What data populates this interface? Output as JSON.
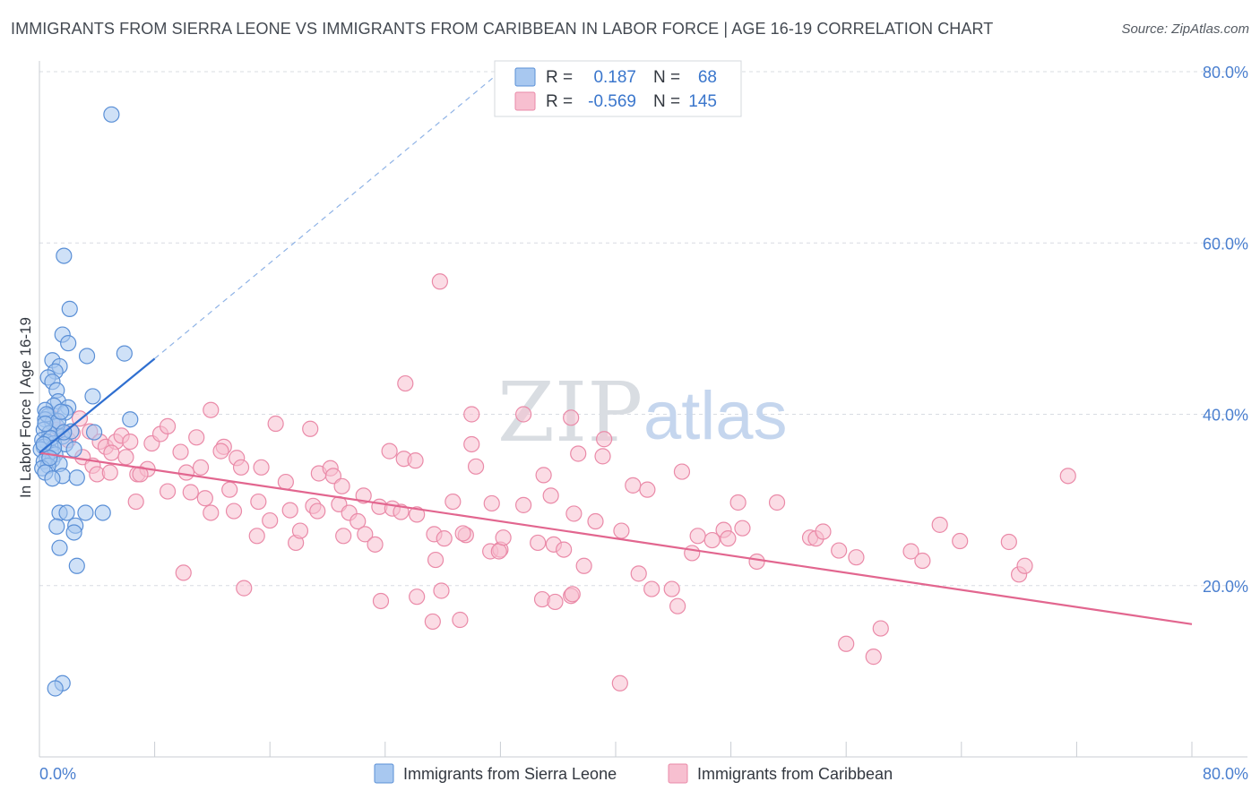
{
  "title": "IMMIGRANTS FROM SIERRA LEONE VS IMMIGRANTS FROM CARIBBEAN IN LABOR FORCE | AGE 16-19 CORRELATION CHART",
  "source": "Source: ZipAtlas.com",
  "watermark": {
    "zip": "ZIP",
    "atlas": "atlas"
  },
  "legend": {
    "rows": [
      {
        "r_label": "R =",
        "r_value": "0.187",
        "n_label": "N =",
        "n_value": "68"
      },
      {
        "r_label": "R =",
        "r_value": "-0.569",
        "n_label": "N =",
        "n_value": "145"
      }
    ]
  },
  "bottom_legend": [
    "Immigrants from Sierra Leone",
    "Immigrants from Caribbean"
  ],
  "colors": {
    "blue_fill": "#a8c8f0",
    "blue_stroke": "#5a8fd6",
    "blue_line": "#2f6fd0",
    "pink_fill": "#f7bfd0",
    "pink_stroke": "#ea8aa8",
    "pink_line": "#e2668f",
    "grid": "#d8dce2",
    "tick_label": "#4a7fcf"
  },
  "chart_data": {
    "type": "scatter",
    "title": "IMMIGRANTS FROM SIERRA LEONE VS IMMIGRANTS FROM CARIBBEAN IN LABOR FORCE | AGE 16-19 CORRELATION CHART",
    "xlabel": "",
    "ylabel": "In Labor Force | Age 16-19",
    "xlim": [
      0,
      80
    ],
    "ylim": [
      0,
      80
    ],
    "x_tick_labels": [
      "0.0%",
      "80.0%"
    ],
    "y_tick_labels": [
      "20.0%",
      "40.0%",
      "60.0%",
      "80.0%"
    ],
    "y_ticks": [
      20,
      40,
      60,
      80
    ],
    "series": [
      {
        "name": "Immigrants from Sierra Leone",
        "r": 0.187,
        "n": 68,
        "trend": {
          "x": [
            0,
            8
          ],
          "y": [
            35.5,
            46.5
          ],
          "dashed_to": [
            32,
            80
          ]
        },
        "points": [
          [
            5.0,
            75.0
          ],
          [
            1.7,
            58.5
          ],
          [
            2.1,
            52.3
          ],
          [
            1.6,
            49.3
          ],
          [
            2.0,
            48.3
          ],
          [
            3.3,
            46.8
          ],
          [
            5.9,
            47.1
          ],
          [
            0.9,
            46.3
          ],
          [
            1.4,
            45.6
          ],
          [
            1.1,
            45.0
          ],
          [
            0.6,
            44.3
          ],
          [
            0.9,
            43.8
          ],
          [
            1.2,
            42.8
          ],
          [
            3.7,
            42.1
          ],
          [
            1.3,
            41.5
          ],
          [
            1.0,
            41.0
          ],
          [
            2.0,
            40.8
          ],
          [
            0.4,
            40.5
          ],
          [
            1.8,
            40.2
          ],
          [
            0.6,
            39.8
          ],
          [
            0.4,
            39.4
          ],
          [
            0.9,
            39.0
          ],
          [
            1.2,
            38.6
          ],
          [
            6.3,
            39.4
          ],
          [
            0.3,
            38.2
          ],
          [
            0.7,
            37.8
          ],
          [
            1.6,
            37.4
          ],
          [
            0.2,
            37.0
          ],
          [
            0.5,
            36.8
          ],
          [
            1.0,
            36.6
          ],
          [
            1.8,
            36.5
          ],
          [
            0.3,
            36.2
          ],
          [
            0.1,
            35.9
          ],
          [
            2.4,
            35.9
          ],
          [
            0.8,
            35.6
          ],
          [
            1.1,
            35.3
          ],
          [
            3.8,
            37.9
          ],
          [
            0.5,
            35.0
          ],
          [
            0.9,
            34.7
          ],
          [
            0.3,
            34.5
          ],
          [
            1.4,
            34.2
          ],
          [
            0.6,
            34.0
          ],
          [
            0.2,
            33.7
          ],
          [
            0.4,
            33.2
          ],
          [
            1.6,
            32.8
          ],
          [
            2.6,
            32.6
          ],
          [
            0.9,
            32.5
          ],
          [
            1.4,
            28.5
          ],
          [
            1.9,
            28.5
          ],
          [
            3.2,
            28.5
          ],
          [
            4.4,
            28.5
          ],
          [
            2.5,
            27.0
          ],
          [
            1.2,
            26.9
          ],
          [
            2.4,
            26.2
          ],
          [
            1.4,
            24.4
          ],
          [
            2.6,
            22.3
          ],
          [
            1.6,
            8.6
          ],
          [
            1.1,
            8.0
          ],
          [
            0.5,
            40.0
          ],
          [
            0.8,
            37.2
          ],
          [
            1.3,
            39.2
          ],
          [
            2.2,
            38.0
          ],
          [
            0.4,
            38.9
          ],
          [
            1.0,
            36.1
          ],
          [
            0.7,
            34.9
          ],
          [
            1.7,
            37.9
          ],
          [
            0.3,
            36.5
          ],
          [
            1.5,
            40.3
          ]
        ]
      },
      {
        "name": "Immigrants from Caribbean",
        "r": -0.569,
        "n": 145,
        "trend": {
          "x": [
            0,
            80
          ],
          "y": [
            35.5,
            15.5
          ]
        },
        "points": [
          [
            1.0,
            39.5
          ],
          [
            1.5,
            38.0
          ],
          [
            2.0,
            37.0
          ],
          [
            2.8,
            39.5
          ],
          [
            1.2,
            38.2
          ],
          [
            2.3,
            37.8
          ],
          [
            3.5,
            38.0
          ],
          [
            4.2,
            36.8
          ],
          [
            3.0,
            35.0
          ],
          [
            4.6,
            36.2
          ],
          [
            5.3,
            36.8
          ],
          [
            5.7,
            37.5
          ],
          [
            6.3,
            36.8
          ],
          [
            5.0,
            35.5
          ],
          [
            6.0,
            35.0
          ],
          [
            3.7,
            34.0
          ],
          [
            4.0,
            33.0
          ],
          [
            4.9,
            33.2
          ],
          [
            6.8,
            33.0
          ],
          [
            7.5,
            33.6
          ],
          [
            7.8,
            36.6
          ],
          [
            8.4,
            37.7
          ],
          [
            8.9,
            38.6
          ],
          [
            9.8,
            35.6
          ],
          [
            10.9,
            37.3
          ],
          [
            10.2,
            33.2
          ],
          [
            11.2,
            33.8
          ],
          [
            12.8,
            36.2
          ],
          [
            12.6,
            35.7
          ],
          [
            13.7,
            34.9
          ],
          [
            14.0,
            33.8
          ],
          [
            11.9,
            40.5
          ],
          [
            7.0,
            33.0
          ],
          [
            6.7,
            29.8
          ],
          [
            8.9,
            31.0
          ],
          [
            10.5,
            30.9
          ],
          [
            11.5,
            30.2
          ],
          [
            11.9,
            28.5
          ],
          [
            13.2,
            31.2
          ],
          [
            13.5,
            28.7
          ],
          [
            15.4,
            33.8
          ],
          [
            15.2,
            29.8
          ],
          [
            16.0,
            27.6
          ],
          [
            15.1,
            25.8
          ],
          [
            17.1,
            32.1
          ],
          [
            16.4,
            38.9
          ],
          [
            17.4,
            28.8
          ],
          [
            17.8,
            25.0
          ],
          [
            18.1,
            26.4
          ],
          [
            19.0,
            29.3
          ],
          [
            19.3,
            28.7
          ],
          [
            18.8,
            38.3
          ],
          [
            19.4,
            33.1
          ],
          [
            20.2,
            33.7
          ],
          [
            20.4,
            32.8
          ],
          [
            21.0,
            31.6
          ],
          [
            20.8,
            29.5
          ],
          [
            21.5,
            28.5
          ],
          [
            22.5,
            30.5
          ],
          [
            22.1,
            27.5
          ],
          [
            22.6,
            26.0
          ],
          [
            23.3,
            24.8
          ],
          [
            23.6,
            29.2
          ],
          [
            21.1,
            25.8
          ],
          [
            24.3,
            35.7
          ],
          [
            24.5,
            29.0
          ],
          [
            25.3,
            34.8
          ],
          [
            26.1,
            34.6
          ],
          [
            25.1,
            28.6
          ],
          [
            26.2,
            28.3
          ],
          [
            27.4,
            26.0
          ],
          [
            28.1,
            25.5
          ],
          [
            27.5,
            23.0
          ],
          [
            25.4,
            43.6
          ],
          [
            30.0,
            36.5
          ],
          [
            30.3,
            33.9
          ],
          [
            28.7,
            29.8
          ],
          [
            29.6,
            25.9
          ],
          [
            29.4,
            26.1
          ],
          [
            31.4,
            29.6
          ],
          [
            31.3,
            24.0
          ],
          [
            32.0,
            24.2
          ],
          [
            31.9,
            24.0
          ],
          [
            32.2,
            25.6
          ],
          [
            30.0,
            40.0
          ],
          [
            33.6,
            40.0
          ],
          [
            33.6,
            29.4
          ],
          [
            34.6,
            25.0
          ],
          [
            35.0,
            32.9
          ],
          [
            35.5,
            30.5
          ],
          [
            35.7,
            24.8
          ],
          [
            36.4,
            24.2
          ],
          [
            37.4,
            35.4
          ],
          [
            37.1,
            28.4
          ],
          [
            37.8,
            22.3
          ],
          [
            38.6,
            27.5
          ],
          [
            40.4,
            26.4
          ],
          [
            41.2,
            31.7
          ],
          [
            41.6,
            21.4
          ],
          [
            42.5,
            19.6
          ],
          [
            43.9,
            19.6
          ],
          [
            44.3,
            17.6
          ],
          [
            45.7,
            25.8
          ],
          [
            45.3,
            23.8
          ],
          [
            47.5,
            26.5
          ],
          [
            47.8,
            25.5
          ],
          [
            48.8,
            26.7
          ],
          [
            48.5,
            29.7
          ],
          [
            49.8,
            22.8
          ],
          [
            51.2,
            29.7
          ],
          [
            53.5,
            25.6
          ],
          [
            53.9,
            25.5
          ],
          [
            54.4,
            26.3
          ],
          [
            55.5,
            24.1
          ],
          [
            56.7,
            23.3
          ],
          [
            56.0,
            13.2
          ],
          [
            57.9,
            11.7
          ],
          [
            58.4,
            15.0
          ],
          [
            60.5,
            24.0
          ],
          [
            61.3,
            22.9
          ],
          [
            62.5,
            27.1
          ],
          [
            63.9,
            25.2
          ],
          [
            67.3,
            25.1
          ],
          [
            68.0,
            21.3
          ],
          [
            68.4,
            22.3
          ],
          [
            71.4,
            32.8
          ],
          [
            39.2,
            37.1
          ],
          [
            42.2,
            31.2
          ],
          [
            44.6,
            33.3
          ],
          [
            46.7,
            25.3
          ],
          [
            34.9,
            18.4
          ],
          [
            36.9,
            18.8
          ],
          [
            37.0,
            19.0
          ],
          [
            26.2,
            18.7
          ],
          [
            27.9,
            19.4
          ],
          [
            29.2,
            16.0
          ],
          [
            27.3,
            15.8
          ],
          [
            35.8,
            18.1
          ],
          [
            40.3,
            8.6
          ],
          [
            10.0,
            21.5
          ],
          [
            14.2,
            19.7
          ],
          [
            23.7,
            18.2
          ],
          [
            27.8,
            55.5
          ],
          [
            36.9,
            39.6
          ],
          [
            39.1,
            35.1
          ]
        ]
      }
    ]
  }
}
